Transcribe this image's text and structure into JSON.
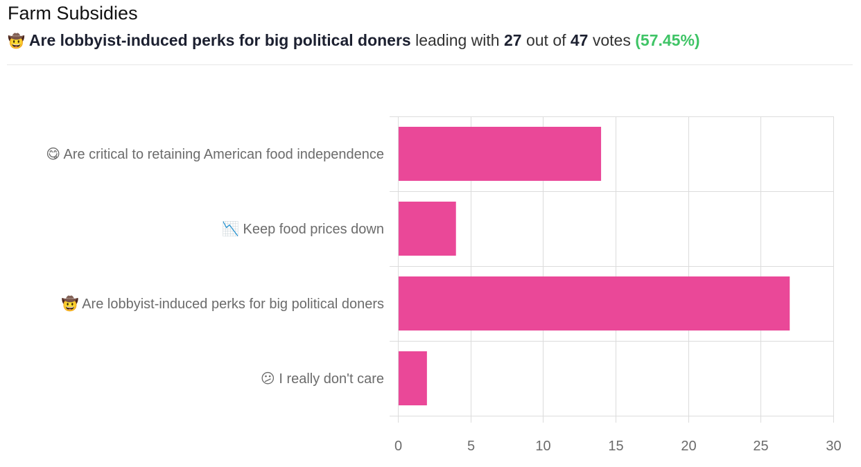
{
  "header": {
    "title": "Farm Subsidies",
    "leader_emoji": "🤠",
    "leader_label": "Are lobbyist-induced perks for big political doners",
    "leading_with_text": "leading with",
    "leader_votes": "27",
    "out_of_text": "out of",
    "total_votes": "47",
    "votes_text": "votes",
    "leader_percent": "(57.45%)"
  },
  "colors": {
    "bar": "#ea4898",
    "grid": "#dcdcdc",
    "percent": "#3fc466",
    "label": "#6b6b6b"
  },
  "chart_data": {
    "type": "bar",
    "orientation": "horizontal",
    "categories": [
      "😋 Are critical to retaining American food independence",
      "📉 Keep food prices down",
      "🤠 Are lobbyist-induced perks for big political doners",
      "😕 I really don't care"
    ],
    "values": [
      14,
      4,
      27,
      2
    ],
    "xlim": [
      0,
      30
    ],
    "xticks": [
      "0",
      "5",
      "10",
      "15",
      "20",
      "25",
      "30"
    ],
    "grid": true,
    "title": "",
    "xlabel": "",
    "ylabel": ""
  }
}
